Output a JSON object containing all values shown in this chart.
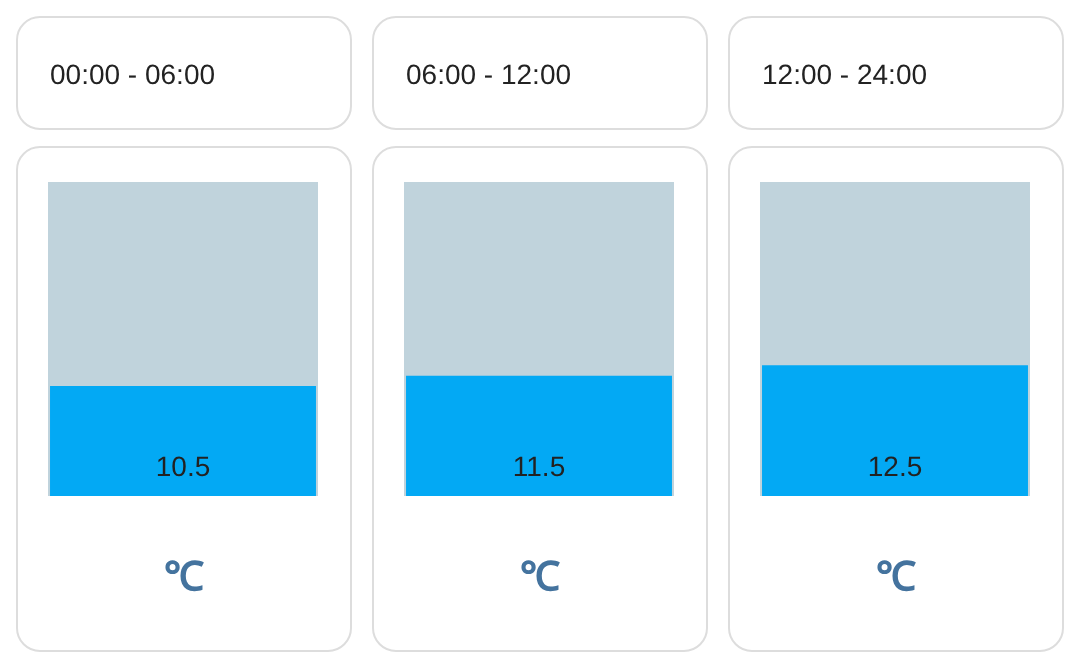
{
  "chart_data": [
    {
      "type": "bar",
      "title": "00:00 - 06:00",
      "xlabel": "℃",
      "categories": [
        null
      ],
      "values": [
        10.5
      ],
      "color": "#03a9f4",
      "ylim": [
        0,
        30
      ],
      "tick_labels": false,
      "data_labels": true,
      "bands": [
        {
          "axis": "y",
          "from": 0,
          "to": 30,
          "color": "#c0d3dc"
        }
      ]
    },
    {
      "type": "bar",
      "title": "06:00 - 12:00",
      "xlabel": "℃",
      "categories": [
        null
      ],
      "values": [
        11.5
      ],
      "color": "#03a9f4",
      "ylim": [
        0,
        30
      ],
      "tick_labels": false,
      "data_labels": true,
      "bands": [
        {
          "axis": "y",
          "from": 0,
          "to": 30,
          "color": "#c0d3dc"
        }
      ]
    },
    {
      "type": "bar",
      "title": "12:00 - 24:00",
      "xlabel": "℃",
      "categories": [
        null
      ],
      "values": [
        12.5
      ],
      "color": "#03a9f4",
      "ylim": [
        0,
        30
      ],
      "tick_labels": false,
      "data_labels": true,
      "bands": [
        {
          "axis": "y",
          "from": 0,
          "to": 30,
          "color": "#c0d3dc"
        }
      ]
    }
  ]
}
